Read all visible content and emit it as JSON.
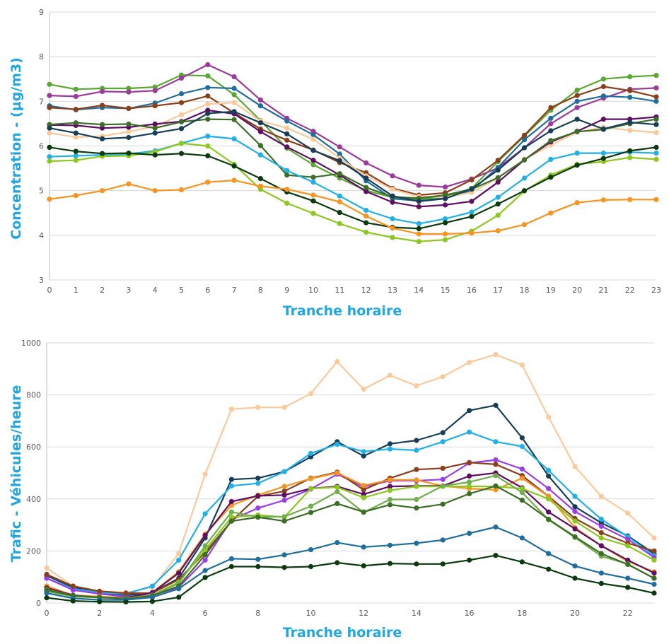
{
  "chart_data": [
    {
      "type": "line",
      "title": "",
      "xlabel": "Tranche horaire",
      "ylabel": "Concentration - (µg/m3)",
      "ylim": [
        3,
        9
      ],
      "yticks": [
        "3",
        "4",
        "5",
        "6",
        "7",
        "8",
        "9"
      ],
      "x": [
        0,
        1,
        2,
        3,
        4,
        5,
        6,
        7,
        8,
        9,
        10,
        11,
        12,
        13,
        14,
        15,
        16,
        17,
        18,
        19,
        20,
        21,
        22,
        23
      ],
      "xticks": [
        "0",
        "1",
        "2",
        "3",
        "4",
        "5",
        "6",
        "7",
        "8",
        "9",
        "10",
        "11",
        "12",
        "13",
        "14",
        "15",
        "16",
        "17",
        "18",
        "19",
        "20",
        "21",
        "22",
        "23"
      ],
      "grid": true,
      "legend": "none",
      "series": [
        {
          "name": "series-1",
          "color": "#5aa832",
          "values": [
            7.38,
            7.27,
            7.29,
            7.29,
            7.32,
            7.59,
            7.57,
            7.15,
            6.57,
            5.95,
            5.58,
            5.28,
            5.0,
            4.85,
            4.8,
            4.87,
            5.05,
            5.65,
            6.22,
            6.8,
            7.25,
            7.5,
            7.55,
            7.58
          ]
        },
        {
          "name": "series-2",
          "color": "#9b3a9a",
          "values": [
            7.13,
            7.11,
            7.22,
            7.21,
            7.24,
            7.52,
            7.82,
            7.55,
            7.03,
            6.62,
            6.33,
            5.98,
            5.62,
            5.33,
            5.12,
            5.08,
            5.26,
            5.51,
            5.96,
            6.5,
            6.86,
            7.07,
            7.27,
            7.3
          ]
        },
        {
          "name": "series-3",
          "color": "#1f6e9e",
          "values": [
            6.9,
            6.81,
            6.86,
            6.84,
            6.96,
            7.17,
            7.31,
            7.29,
            6.9,
            6.56,
            6.25,
            5.82,
            5.22,
            4.82,
            4.77,
            4.83,
            5.0,
            5.52,
            6.14,
            6.62,
            7.0,
            7.12,
            7.09,
            7.0
          ]
        },
        {
          "name": "series-4",
          "color": "#8b3f1a",
          "values": [
            6.86,
            6.82,
            6.91,
            6.84,
            6.9,
            6.97,
            7.12,
            6.74,
            6.38,
            6.13,
            5.91,
            5.63,
            5.4,
            5.05,
            4.9,
            4.95,
            5.24,
            5.68,
            6.24,
            6.86,
            7.13,
            7.33,
            7.24,
            7.1
          ]
        },
        {
          "name": "series-5",
          "color": "#f9c99a",
          "values": [
            6.29,
            6.2,
            6.22,
            6.32,
            6.44,
            6.7,
            6.94,
            6.97,
            6.56,
            6.4,
            6.15,
            5.73,
            5.33,
            5.03,
            4.87,
            4.85,
            4.96,
            5.28,
            5.7,
            6.02,
            6.31,
            6.42,
            6.35,
            6.3
          ]
        },
        {
          "name": "series-6",
          "color": "#5e0f63",
          "values": [
            6.47,
            6.46,
            6.4,
            6.42,
            6.49,
            6.55,
            6.8,
            6.72,
            6.32,
            5.98,
            5.68,
            5.35,
            4.98,
            4.74,
            4.64,
            4.68,
            4.76,
            5.19,
            5.69,
            6.09,
            6.33,
            6.6,
            6.6,
            6.65
          ]
        },
        {
          "name": "series-7",
          "color": "#3c6e28",
          "values": [
            6.48,
            6.52,
            6.48,
            6.49,
            6.4,
            6.54,
            6.6,
            6.59,
            6.01,
            5.35,
            5.3,
            5.38,
            5.07,
            4.86,
            4.83,
            4.9,
            5.03,
            5.29,
            5.69,
            6.12,
            6.32,
            6.37,
            6.5,
            6.6
          ]
        },
        {
          "name": "series-8",
          "color": "#173e57",
          "values": [
            6.4,
            6.29,
            6.16,
            6.19,
            6.29,
            6.39,
            6.73,
            6.77,
            6.52,
            6.27,
            5.9,
            5.67,
            5.28,
            4.88,
            4.76,
            4.82,
            5.04,
            5.46,
            5.96,
            6.34,
            6.6,
            6.38,
            6.53,
            6.48
          ]
        },
        {
          "name": "series-9",
          "color": "#1fb0e8",
          "values": [
            5.76,
            5.78,
            5.8,
            5.82,
            5.89,
            6.06,
            6.22,
            6.16,
            5.8,
            5.45,
            5.19,
            4.88,
            4.56,
            4.37,
            4.26,
            4.37,
            4.52,
            4.85,
            5.28,
            5.7,
            5.84,
            5.84,
            5.86,
            5.84
          ]
        },
        {
          "name": "series-10",
          "color": "#8cc81e",
          "values": [
            5.66,
            5.68,
            5.77,
            5.78,
            5.87,
            6.06,
            6.0,
            5.59,
            5.03,
            4.72,
            4.49,
            4.26,
            4.07,
            3.95,
            3.86,
            3.9,
            4.09,
            4.45,
            4.99,
            5.35,
            5.59,
            5.65,
            5.74,
            5.7
          ]
        },
        {
          "name": "series-11",
          "color": "#0b3a0e",
          "values": [
            5.97,
            5.88,
            5.83,
            5.84,
            5.8,
            5.83,
            5.78,
            5.55,
            5.27,
            4.97,
            4.77,
            4.51,
            4.28,
            4.18,
            4.15,
            4.28,
            4.42,
            4.7,
            5.0,
            5.3,
            5.57,
            5.72,
            5.89,
            5.97
          ]
        },
        {
          "name": "series-12",
          "color": "#f7931e",
          "values": [
            4.81,
            4.89,
            5.0,
            5.15,
            5.0,
            5.02,
            5.19,
            5.23,
            5.1,
            5.03,
            4.9,
            4.75,
            4.43,
            4.16,
            4.03,
            4.03,
            4.05,
            4.1,
            4.24,
            4.5,
            4.73,
            4.79,
            4.8,
            4.8
          ]
        }
      ]
    },
    {
      "type": "line",
      "title": "",
      "xlabel": "Tranche horaire",
      "ylabel": "Trafic - Véhicules/heure",
      "ylim": [
        0,
        1000
      ],
      "yticks": [
        "0",
        "200",
        "400",
        "600",
        "800",
        "1000"
      ],
      "x": [
        0,
        1,
        2,
        3,
        4,
        5,
        6,
        7,
        8,
        9,
        10,
        11,
        12,
        13,
        14,
        15,
        16,
        17,
        18,
        19,
        20,
        21,
        22,
        23
      ],
      "xticks": [
        "0",
        "2",
        "4",
        "6",
        "8",
        "10",
        "12",
        "14",
        "16",
        "18",
        "20",
        "22"
      ],
      "grid": true,
      "legend": "none",
      "series": [
        {
          "name": "series-1",
          "color": "#fbc99a",
          "values": [
            135,
            65,
            45,
            40,
            60,
            190,
            495,
            745,
            752,
            752,
            805,
            928,
            822,
            875,
            835,
            870,
            925,
            955,
            915,
            715,
            525,
            410,
            345,
            250
          ]
        },
        {
          "name": "series-2",
          "color": "#173e57",
          "values": [
            105,
            60,
            40,
            30,
            40,
            95,
            250,
            475,
            480,
            505,
            562,
            620,
            565,
            612,
            625,
            655,
            740,
            760,
            635,
            488,
            370,
            308,
            258,
            190
          ]
        },
        {
          "name": "series-3",
          "color": "#1fb0e8",
          "values": [
            95,
            55,
            40,
            35,
            65,
            165,
            343,
            450,
            460,
            505,
            575,
            610,
            582,
            592,
            587,
            620,
            657,
            620,
            602,
            510,
            410,
            322,
            255,
            182
          ]
        },
        {
          "name": "series-4",
          "color": "#9b3de8",
          "values": [
            95,
            50,
            35,
            25,
            30,
            60,
            165,
            320,
            365,
            395,
            438,
            495,
            447,
            470,
            470,
            475,
            538,
            550,
            515,
            440,
            352,
            295,
            245,
            175
          ]
        },
        {
          "name": "series-5",
          "color": "#8b3f1a",
          "values": [
            110,
            65,
            45,
            38,
            38,
            90,
            195,
            315,
            410,
            430,
            480,
            503,
            435,
            480,
            513,
            518,
            540,
            533,
            490,
            410,
            325,
            270,
            230,
            200
          ]
        },
        {
          "name": "series-6",
          "color": "#f7931e",
          "values": [
            65,
            30,
            25,
            20,
            40,
            120,
            265,
            375,
            415,
            448,
            478,
            500,
            452,
            473,
            473,
            450,
            440,
            435,
            480,
            410,
            290,
            220,
            160,
            120
          ]
        },
        {
          "name": "series-7",
          "color": "#5e0f63",
          "values": [
            58,
            30,
            20,
            20,
            40,
            115,
            260,
            390,
            412,
            415,
            440,
            448,
            418,
            448,
            450,
            450,
            488,
            500,
            443,
            350,
            285,
            220,
            165,
            115
          ]
        },
        {
          "name": "series-8",
          "color": "#8cc81e",
          "values": [
            52,
            28,
            20,
            18,
            30,
            80,
            205,
            330,
            338,
            330,
            440,
            445,
            405,
            433,
            448,
            448,
            448,
            448,
            440,
            400,
            315,
            250,
            220,
            165
          ]
        },
        {
          "name": "series-9",
          "color": "#72ae4c",
          "values": [
            45,
            25,
            20,
            18,
            30,
            75,
            220,
            350,
            330,
            332,
            372,
            428,
            348,
            398,
            398,
            450,
            465,
            490,
            425,
            320,
            252,
            180,
            150,
            95
          ]
        },
        {
          "name": "series-10",
          "color": "#3c6e28",
          "values": [
            50,
            28,
            22,
            16,
            28,
            65,
            185,
            315,
            330,
            315,
            348,
            382,
            350,
            378,
            365,
            380,
            420,
            450,
            395,
            322,
            255,
            190,
            148,
            95
          ]
        },
        {
          "name": "series-11",
          "color": "#1f6e9e",
          "values": [
            38,
            18,
            12,
            12,
            22,
            55,
            125,
            170,
            168,
            185,
            205,
            232,
            215,
            222,
            230,
            242,
            268,
            292,
            250,
            190,
            142,
            115,
            95,
            72
          ]
        },
        {
          "name": "series-12",
          "color": "#0b3a0e",
          "values": [
            20,
            8,
            5,
            4,
            6,
            22,
            98,
            140,
            140,
            137,
            140,
            155,
            143,
            152,
            150,
            150,
            165,
            183,
            158,
            130,
            95,
            75,
            60,
            38
          ]
        }
      ]
    }
  ]
}
